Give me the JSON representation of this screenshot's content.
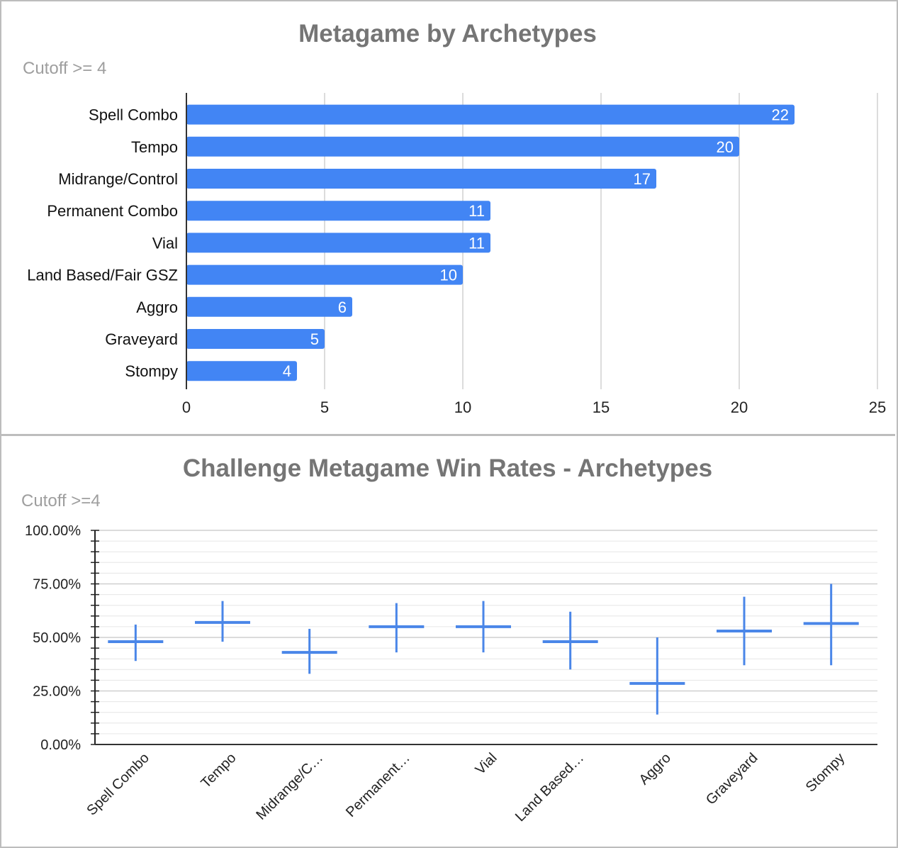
{
  "chart_data": [
    {
      "type": "bar",
      "orientation": "horizontal",
      "title": "Metagame by Archetypes",
      "subtitle": "Cutoff >= 4",
      "categories": [
        "Spell Combo",
        "Tempo",
        "Midrange/Control",
        "Permanent Combo",
        "Vial",
        "Land Based/Fair GSZ",
        "Aggro",
        "Graveyard",
        "Stompy"
      ],
      "values": [
        22,
        20,
        17,
        11,
        11,
        10,
        6,
        5,
        4
      ],
      "data_labels": [
        "22",
        "20",
        "17",
        "11",
        "11",
        "10",
        "6",
        "5",
        "4"
      ],
      "xlim": [
        0,
        25
      ],
      "xticks": [
        "0",
        "5",
        "10",
        "15",
        "20",
        "25"
      ],
      "grid": true,
      "bar_color": "#4285f4"
    },
    {
      "type": "candlestick",
      "title": "Challenge Metagame Win Rates - Archetypes",
      "subtitle": "Cutoff >=4",
      "categories": [
        "Spell Combo",
        "Tempo",
        "Midrange/C…",
        "Permanent…",
        "Vial",
        "Land Based…",
        "Aggro",
        "Graveyard",
        "Stompy"
      ],
      "low": [
        0.39,
        0.48,
        0.33,
        0.43,
        0.43,
        0.35,
        0.14,
        0.37,
        0.37
      ],
      "high": [
        0.56,
        0.67,
        0.54,
        0.66,
        0.67,
        0.62,
        0.5,
        0.69,
        0.75
      ],
      "mid": [
        0.48,
        0.57,
        0.43,
        0.55,
        0.55,
        0.48,
        0.285,
        0.53,
        0.565
      ],
      "ylim": [
        0,
        1
      ],
      "yticks": [
        "0.00%",
        "25.00%",
        "50.00%",
        "75.00%",
        "100.00%"
      ],
      "grid": true,
      "color": "#4a86e8"
    }
  ]
}
